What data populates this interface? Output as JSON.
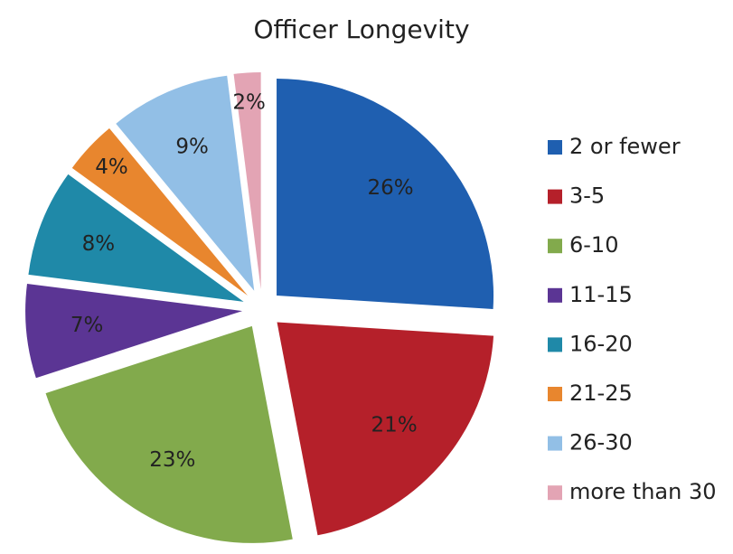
{
  "chart_data": {
    "type": "pie",
    "title": "Officer Longevity",
    "categories": [
      "2 or fewer",
      "3-5",
      "6-10",
      "11-15",
      "16-20",
      "21-25",
      "26-30",
      "more than 30"
    ],
    "values": [
      26,
      21,
      23,
      7,
      8,
      4,
      9,
      2
    ],
    "value_labels": [
      "26%",
      "21%",
      "23%",
      "7%",
      "8%",
      "4%",
      "9%",
      "2%"
    ],
    "colors": [
      "#1f5fb0",
      "#b5202a",
      "#82aa4c",
      "#5b3594",
      "#1f89a8",
      "#e8862e",
      "#92bfe6",
      "#e3a4b4"
    ],
    "legend": "right"
  }
}
